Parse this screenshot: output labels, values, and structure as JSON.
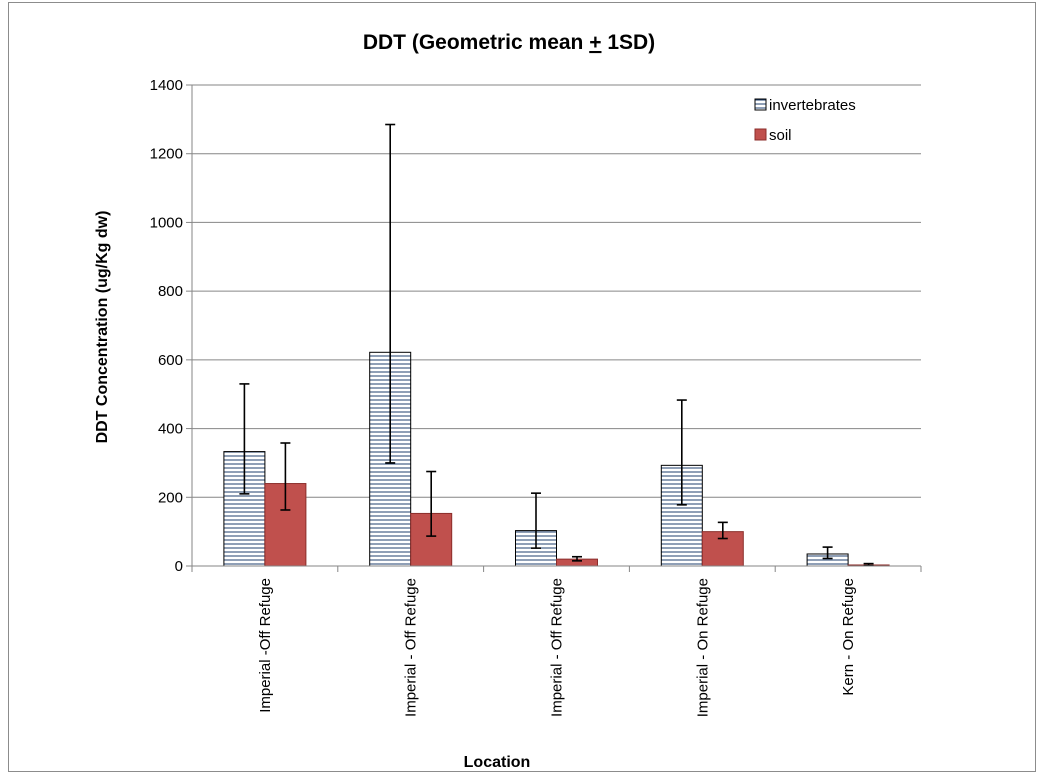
{
  "chart_data": {
    "type": "bar",
    "title_parts": [
      "DDT (Geometric mean ",
      "+",
      " 1SD)"
    ],
    "xlabel": "Location",
    "ylabel": "DDT Concentration (ug/Kg dw)",
    "ylim": [
      0,
      1400
    ],
    "yticks": [
      0,
      200,
      400,
      600,
      800,
      1000,
      1200,
      1400
    ],
    "grid": "horizontal",
    "legend_position": "top-right",
    "categories": [
      "Imperial -Off Refuge",
      "Imperial - Off Refuge",
      "Imperial - Off Refuge",
      "Imperial - On Refuge",
      "Kern - On Refuge"
    ],
    "series": [
      {
        "name": "invertebrates",
        "pattern": "horizontal-lines",
        "color": "#1f3f6e",
        "values": [
          333,
          622,
          103,
          293,
          35
        ],
        "err_low": [
          210,
          300,
          52,
          178,
          22
        ],
        "err_high": [
          530,
          1285,
          212,
          483,
          55
        ]
      },
      {
        "name": "soil",
        "pattern": "solid",
        "color": "#c0504d",
        "values": [
          240,
          153,
          20,
          100,
          3
        ],
        "err_low": [
          163,
          87,
          15,
          80,
          1
        ],
        "err_high": [
          358,
          275,
          27,
          127,
          7
        ]
      }
    ]
  }
}
